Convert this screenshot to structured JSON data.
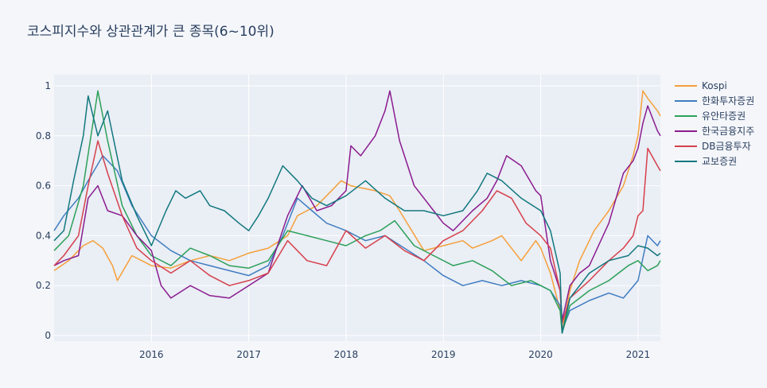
{
  "chart_data": {
    "type": "line",
    "title": "코스피지수와 상관관계가 큰 종목(6~10위)",
    "xlabel": "",
    "ylabel": "",
    "ylim": [
      0,
      1
    ],
    "xlim": [
      2015.0,
      2021.23
    ],
    "grid": true,
    "legend_position": "top-right",
    "y_ticks": [
      0,
      0.2,
      0.4,
      0.6,
      0.8,
      1
    ],
    "y_tick_labels": [
      "0",
      "0.2",
      "0.4",
      "0.6",
      "0.8",
      "1"
    ],
    "x_ticks": [
      2016,
      2017,
      2018,
      2019,
      2020,
      2021
    ],
    "x_tick_labels": [
      "2016",
      "2017",
      "2018",
      "2019",
      "2020",
      "2021"
    ],
    "series": [
      {
        "name": "Kospi",
        "color": "#f5a03a",
        "x": [
          2015.0,
          2015.15,
          2015.3,
          2015.4,
          2015.5,
          2015.6,
          2015.65,
          2015.8,
          2016.0,
          2016.2,
          2016.4,
          2016.6,
          2016.8,
          2017.0,
          2017.2,
          2017.4,
          2017.5,
          2017.7,
          2017.8,
          2017.95,
          2018.05,
          2018.3,
          2018.45,
          2018.55,
          2018.8,
          2019.0,
          2019.2,
          2019.3,
          2019.5,
          2019.6,
          2019.8,
          2019.95,
          2020.0,
          2020.1,
          2020.2,
          2020.22,
          2020.3,
          2020.4,
          2020.55,
          2020.7,
          2020.85,
          2020.95,
          2021.0,
          2021.05,
          2021.1,
          2021.2,
          2021.23
        ],
        "y": [
          0.26,
          0.3,
          0.36,
          0.38,
          0.35,
          0.28,
          0.22,
          0.32,
          0.28,
          0.27,
          0.3,
          0.32,
          0.3,
          0.33,
          0.35,
          0.4,
          0.48,
          0.52,
          0.56,
          0.62,
          0.6,
          0.58,
          0.56,
          0.5,
          0.34,
          0.36,
          0.38,
          0.35,
          0.38,
          0.4,
          0.3,
          0.38,
          0.35,
          0.25,
          0.1,
          0.02,
          0.18,
          0.3,
          0.42,
          0.5,
          0.6,
          0.72,
          0.8,
          0.98,
          0.95,
          0.9,
          0.88
        ]
      },
      {
        "name": "한화투자증권",
        "color": "#3f7dc0",
        "x": [
          2015.0,
          2015.1,
          2015.25,
          2015.35,
          2015.5,
          2015.65,
          2015.8,
          2016.0,
          2016.2,
          2016.4,
          2016.6,
          2016.8,
          2017.0,
          2017.2,
          2017.35,
          2017.5,
          2017.65,
          2017.8,
          2018.0,
          2018.2,
          2018.4,
          2018.6,
          2018.8,
          2019.0,
          2019.2,
          2019.4,
          2019.6,
          2019.8,
          2020.0,
          2020.1,
          2020.2,
          2020.22,
          2020.3,
          2020.5,
          2020.7,
          2020.85,
          2021.0,
          2021.1,
          2021.2,
          2021.23
        ],
        "y": [
          0.42,
          0.48,
          0.55,
          0.62,
          0.72,
          0.66,
          0.52,
          0.4,
          0.34,
          0.3,
          0.28,
          0.26,
          0.24,
          0.28,
          0.4,
          0.55,
          0.5,
          0.45,
          0.42,
          0.38,
          0.4,
          0.35,
          0.3,
          0.24,
          0.2,
          0.22,
          0.2,
          0.22,
          0.2,
          0.18,
          0.12,
          0.02,
          0.1,
          0.14,
          0.17,
          0.15,
          0.22,
          0.4,
          0.36,
          0.38
        ]
      },
      {
        "name": "유안타증권",
        "color": "#2ca05a",
        "x": [
          2015.0,
          2015.15,
          2015.3,
          2015.45,
          2015.55,
          2015.7,
          2015.85,
          2016.0,
          2016.2,
          2016.4,
          2016.6,
          2016.8,
          2017.0,
          2017.2,
          2017.4,
          2017.6,
          2017.8,
          2018.0,
          2018.2,
          2018.35,
          2018.5,
          2018.7,
          2018.9,
          2019.1,
          2019.3,
          2019.5,
          2019.7,
          2019.9,
          2020.0,
          2020.1,
          2020.2,
          2020.22,
          2020.3,
          2020.5,
          2020.7,
          2020.9,
          2021.0,
          2021.1,
          2021.2,
          2021.23
        ],
        "y": [
          0.34,
          0.4,
          0.6,
          0.98,
          0.78,
          0.52,
          0.4,
          0.32,
          0.28,
          0.35,
          0.32,
          0.28,
          0.27,
          0.3,
          0.42,
          0.4,
          0.38,
          0.36,
          0.4,
          0.42,
          0.46,
          0.36,
          0.32,
          0.28,
          0.3,
          0.26,
          0.2,
          0.22,
          0.2,
          0.18,
          0.1,
          0.01,
          0.12,
          0.18,
          0.22,
          0.28,
          0.3,
          0.26,
          0.28,
          0.3
        ]
      },
      {
        "name": "한국금융지주",
        "color": "#8a1c8f",
        "x": [
          2015.0,
          2015.1,
          2015.25,
          2015.35,
          2015.45,
          2015.55,
          2015.7,
          2015.85,
          2016.0,
          2016.1,
          2016.2,
          2016.4,
          2016.6,
          2016.8,
          2017.0,
          2017.2,
          2017.4,
          2017.55,
          2017.7,
          2017.85,
          2018.0,
          2018.05,
          2018.15,
          2018.3,
          2018.4,
          2018.45,
          2018.55,
          2018.7,
          2018.9,
          2019.0,
          2019.1,
          2019.3,
          2019.45,
          2019.55,
          2019.65,
          2019.8,
          2019.95,
          2020.0,
          2020.1,
          2020.2,
          2020.22,
          2020.3,
          2020.4,
          2020.5,
          2020.7,
          2020.85,
          2020.95,
          2021.0,
          2021.05,
          2021.1,
          2021.2,
          2021.23
        ],
        "y": [
          0.28,
          0.3,
          0.32,
          0.55,
          0.6,
          0.5,
          0.48,
          0.4,
          0.34,
          0.2,
          0.15,
          0.2,
          0.16,
          0.15,
          0.2,
          0.25,
          0.48,
          0.6,
          0.5,
          0.52,
          0.58,
          0.76,
          0.72,
          0.8,
          0.9,
          0.98,
          0.78,
          0.6,
          0.5,
          0.45,
          0.42,
          0.5,
          0.55,
          0.62,
          0.72,
          0.68,
          0.58,
          0.56,
          0.3,
          0.18,
          0.06,
          0.2,
          0.25,
          0.28,
          0.45,
          0.65,
          0.7,
          0.75,
          0.85,
          0.92,
          0.82,
          0.8
        ]
      },
      {
        "name": "DB금융투자",
        "color": "#d6404c",
        "x": [
          2015.0,
          2015.1,
          2015.25,
          2015.35,
          2015.45,
          2015.55,
          2015.7,
          2015.85,
          2016.0,
          2016.2,
          2016.4,
          2016.6,
          2016.8,
          2017.0,
          2017.2,
          2017.4,
          2017.6,
          2017.8,
          2018.0,
          2018.2,
          2018.4,
          2018.6,
          2018.8,
          2019.0,
          2019.2,
          2019.4,
          2019.55,
          2019.7,
          2019.85,
          2020.0,
          2020.1,
          2020.2,
          2020.22,
          2020.3,
          2020.5,
          2020.7,
          2020.85,
          2020.95,
          2021.0,
          2021.05,
          2021.1,
          2021.2,
          2021.23
        ],
        "y": [
          0.28,
          0.32,
          0.4,
          0.6,
          0.78,
          0.65,
          0.48,
          0.35,
          0.3,
          0.25,
          0.3,
          0.24,
          0.2,
          0.22,
          0.25,
          0.38,
          0.3,
          0.28,
          0.42,
          0.35,
          0.4,
          0.34,
          0.3,
          0.38,
          0.42,
          0.5,
          0.58,
          0.55,
          0.45,
          0.4,
          0.35,
          0.18,
          0.05,
          0.15,
          0.22,
          0.3,
          0.35,
          0.4,
          0.48,
          0.5,
          0.75,
          0.68,
          0.66
        ]
      },
      {
        "name": "교보증권",
        "color": "#12787e",
        "x": [
          2015.0,
          2015.1,
          2015.2,
          2015.3,
          2015.35,
          2015.45,
          2015.55,
          2015.7,
          2015.85,
          2016.0,
          2016.15,
          2016.25,
          2016.35,
          2016.5,
          2016.6,
          2016.75,
          2016.9,
          2017.0,
          2017.1,
          2017.2,
          2017.35,
          2017.5,
          2017.65,
          2017.8,
          2018.0,
          2018.2,
          2018.4,
          2018.6,
          2018.8,
          2019.0,
          2019.2,
          2019.35,
          2019.45,
          2019.6,
          2019.8,
          2020.0,
          2020.1,
          2020.2,
          2020.22,
          2020.3,
          2020.5,
          2020.7,
          2020.9,
          2021.0,
          2021.1,
          2021.2,
          2021.23
        ],
        "y": [
          0.38,
          0.42,
          0.62,
          0.8,
          0.96,
          0.8,
          0.9,
          0.62,
          0.48,
          0.36,
          0.5,
          0.58,
          0.55,
          0.58,
          0.52,
          0.5,
          0.45,
          0.42,
          0.48,
          0.55,
          0.68,
          0.62,
          0.55,
          0.52,
          0.56,
          0.62,
          0.55,
          0.5,
          0.5,
          0.48,
          0.5,
          0.58,
          0.65,
          0.62,
          0.55,
          0.5,
          0.42,
          0.25,
          0.01,
          0.15,
          0.25,
          0.3,
          0.32,
          0.36,
          0.35,
          0.32,
          0.33
        ]
      }
    ]
  }
}
